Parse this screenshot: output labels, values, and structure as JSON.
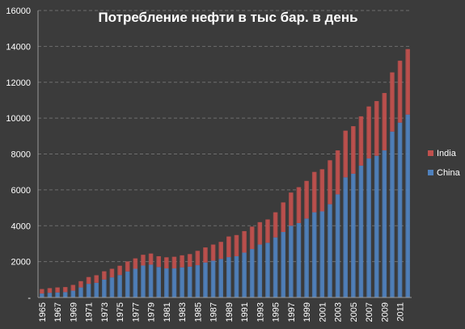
{
  "chart_data": {
    "type": "bar",
    "stacked": true,
    "title": "Потребление нефти в тыс бар. в день",
    "xlabel": "",
    "ylabel": "",
    "ylim": [
      0,
      16000
    ],
    "yticks": [
      0,
      2000,
      4000,
      6000,
      8000,
      10000,
      12000,
      14000,
      16000
    ],
    "ytick_labels": [
      "-",
      "2000",
      "4000",
      "6000",
      "8000",
      "10000",
      "12000",
      "14000",
      "16000"
    ],
    "grid": true,
    "legend_position": "right",
    "categories": [
      "1965",
      "1966",
      "1967",
      "1968",
      "1969",
      "1970",
      "1971",
      "1972",
      "1973",
      "1974",
      "1975",
      "1976",
      "1977",
      "1978",
      "1979",
      "1980",
      "1981",
      "1982",
      "1983",
      "1984",
      "1985",
      "1986",
      "1987",
      "1988",
      "1989",
      "1990",
      "1991",
      "1992",
      "1993",
      "1994",
      "1995",
      "1996",
      "1997",
      "1998",
      "1999",
      "2000",
      "2001",
      "2002",
      "2003",
      "2004",
      "2005",
      "2006",
      "2007",
      "2008",
      "2009",
      "2010",
      "2011",
      "2012"
    ],
    "xtick_labels": [
      "1965",
      "1967",
      "1969",
      "1971",
      "1973",
      "1975",
      "1977",
      "1979",
      "1981",
      "1983",
      "1985",
      "1987",
      "1989",
      "1991",
      "1993",
      "1995",
      "1997",
      "1999",
      "2001",
      "2003",
      "2005",
      "2007",
      "2009",
      "2011"
    ],
    "series": [
      {
        "name": "China",
        "color": "#4f81bd",
        "values": [
          220,
          260,
          280,
          300,
          380,
          560,
          760,
          820,
          1000,
          1120,
          1250,
          1450,
          1600,
          1780,
          1830,
          1700,
          1620,
          1620,
          1680,
          1720,
          1800,
          1950,
          2050,
          2150,
          2250,
          2300,
          2500,
          2700,
          2950,
          3050,
          3350,
          3650,
          4000,
          4150,
          4400,
          4750,
          4800,
          5200,
          5750,
          6700,
          6900,
          7350,
          7750,
          7900,
          8200,
          9250,
          9750,
          10200
        ]
      },
      {
        "name": "India",
        "color": "#c0504d",
        "values": [
          250,
          260,
          280,
          280,
          320,
          350,
          380,
          420,
          460,
          480,
          520,
          560,
          580,
          600,
          620,
          600,
          620,
          650,
          670,
          700,
          800,
          840,
          900,
          950,
          1150,
          1180,
          1200,
          1250,
          1250,
          1300,
          1400,
          1650,
          1850,
          2000,
          2100,
          2250,
          2350,
          2450,
          2450,
          2600,
          2650,
          2750,
          2900,
          3050,
          3200,
          3300,
          3450,
          3650
        ]
      }
    ]
  }
}
